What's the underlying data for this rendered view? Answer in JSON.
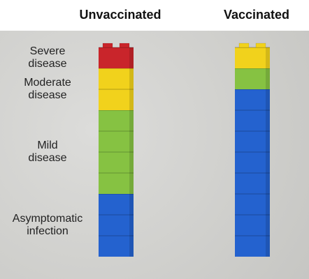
{
  "chart_data": {
    "type": "stacked-bar",
    "categories": [
      "Unvaccinated",
      "Vaccinated"
    ],
    "series": [
      {
        "name": "Severe disease",
        "color": "#c9252b",
        "values": [
          1,
          0
        ]
      },
      {
        "name": "Moderate disease",
        "color": "#f1d21c",
        "values": [
          2,
          1
        ]
      },
      {
        "name": "Mild disease",
        "color": "#86c242",
        "values": [
          4,
          1
        ]
      },
      {
        "name": "Asymptomatic infection",
        "color": "#2462cf",
        "values": [
          3,
          8
        ]
      }
    ]
  }
}
